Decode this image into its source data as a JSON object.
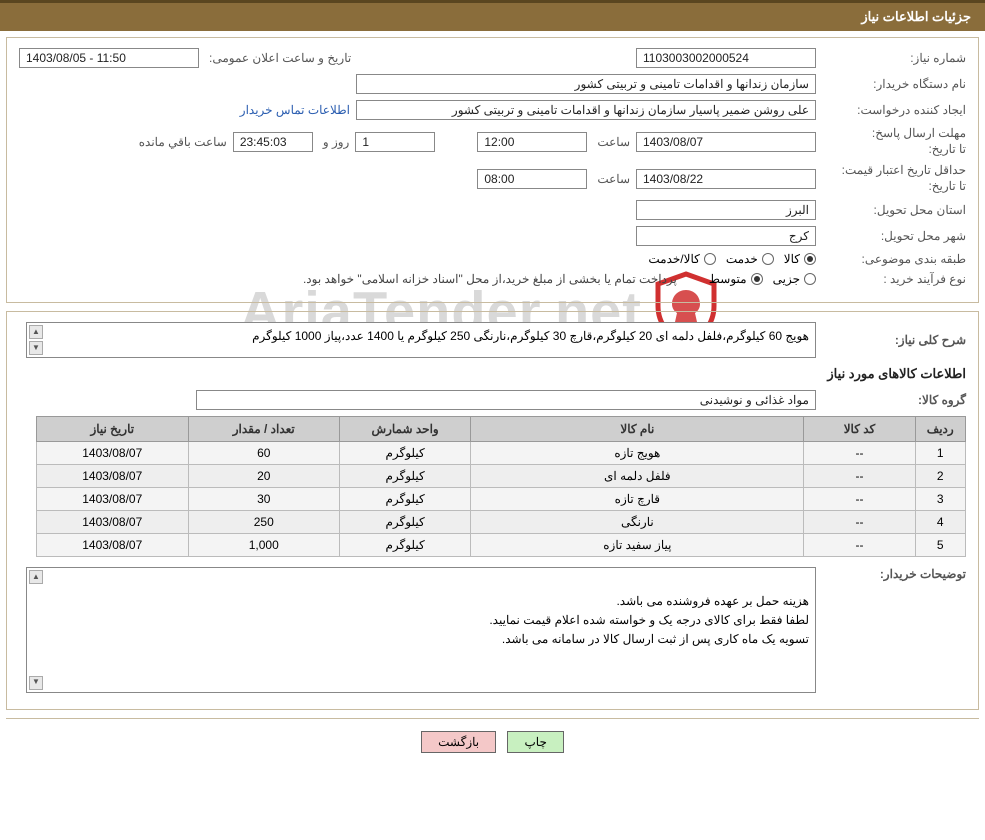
{
  "page_title": "جزئیات اطلاعات نیاز",
  "watermark_text": "AriaTender.net",
  "fields": {
    "need_no_label": "شماره نیاز:",
    "need_no": "1103003002000524",
    "announce_label": "تاریخ و ساعت اعلان عمومی:",
    "announce_value": "1403/08/05 - 11:50",
    "buyer_org_label": "نام دستگاه خریدار:",
    "buyer_org": "سازمان زندانها و اقدامات تامینی و تربیتی کشور",
    "requester_label": "ایجاد کننده درخواست:",
    "requester": "علی روشن ضمیر پاسیار سازمان زندانها و اقدامات تامینی و تربیتی کشور",
    "contact_link": "اطلاعات تماس خریدار",
    "deadline_label": "مهلت ارسال پاسخ:",
    "to_date_label": "تا تاریخ:",
    "deadline_date": "1403/08/07",
    "time_label": "ساعت",
    "deadline_time": "12:00",
    "day_count": "1",
    "day_and_label": "روز و",
    "countdown": "23:45:03",
    "remaining_label": "ساعت باقي مانده",
    "min_valid_label": "حداقل تاریخ اعتبار قیمت:",
    "min_valid_date": "1403/08/22",
    "min_valid_time": "08:00",
    "province_label": "استان محل تحویل:",
    "province": "البرز",
    "city_label": "شهر محل تحویل:",
    "city": "کرج",
    "category_label": "طبقه بندی موضوعی:",
    "cat_goods": "کالا",
    "cat_service": "خدمت",
    "cat_goods_service": "کالا/خدمت",
    "purchase_type_label": "نوع فرآیند خرید :",
    "pt_minor": "جزیی",
    "pt_medium": "متوسط",
    "payment_note": "پرداخت تمام یا بخشی از مبلغ خرید،از محل \"اسناد خزانه اسلامی\" خواهد بود.",
    "desc_label": "شرح کلی نیاز:",
    "desc_value": "هویج 60 کیلوگرم،فلفل دلمه ای 20 کیلوگرم،قارچ 30 کیلوگرم،نارنگی 250 کیلوگرم یا 1400 عدد،پیاز 1000 کیلوگرم",
    "items_section": "اطلاعات کالاهای مورد نیاز",
    "goods_group_label": "گروه کالا:",
    "goods_group": "مواد غذائی و نوشیدنی",
    "buyer_notes_label": "توضیحات خریدار:",
    "buyer_notes": "هزینه حمل بر عهده فروشنده می باشد.\nلطفا فقط برای کالای درجه یک و خواسته شده اعلام قیمت نمایید.\nتسویه یک ماه کاری پس از ثبت ارسال کالا در سامانه می باشد."
  },
  "table": {
    "columns": [
      "ردیف",
      "کد کالا",
      "نام کالا",
      "واحد شمارش",
      "تعداد / مقدار",
      "تاریخ نیاز"
    ],
    "col_widths": [
      "50px",
      "110px",
      "330px",
      "130px",
      "150px",
      "150px"
    ],
    "rows": [
      [
        "1",
        "--",
        "هویج تازه",
        "کیلوگرم",
        "60",
        "1403/08/07"
      ],
      [
        "2",
        "--",
        "فلفل دلمه ای",
        "کیلوگرم",
        "20",
        "1403/08/07"
      ],
      [
        "3",
        "--",
        "قارچ تازه",
        "کیلوگرم",
        "30",
        "1403/08/07"
      ],
      [
        "4",
        "--",
        "نارنگی",
        "کیلوگرم",
        "250",
        "1403/08/07"
      ],
      [
        "5",
        "--",
        "پیاز سفید تازه",
        "کیلوگرم",
        "1,000",
        "1403/08/07"
      ]
    ]
  },
  "buttons": {
    "print": "چاپ",
    "back": "بازگشت"
  },
  "colors": {
    "header_bg": "#8a6d3b",
    "border": "#c8bba0",
    "th_bg": "#cfcfcf",
    "row_even": "#eeeeee",
    "row_odd": "#f4f4f4",
    "link": "#2a5db0"
  }
}
